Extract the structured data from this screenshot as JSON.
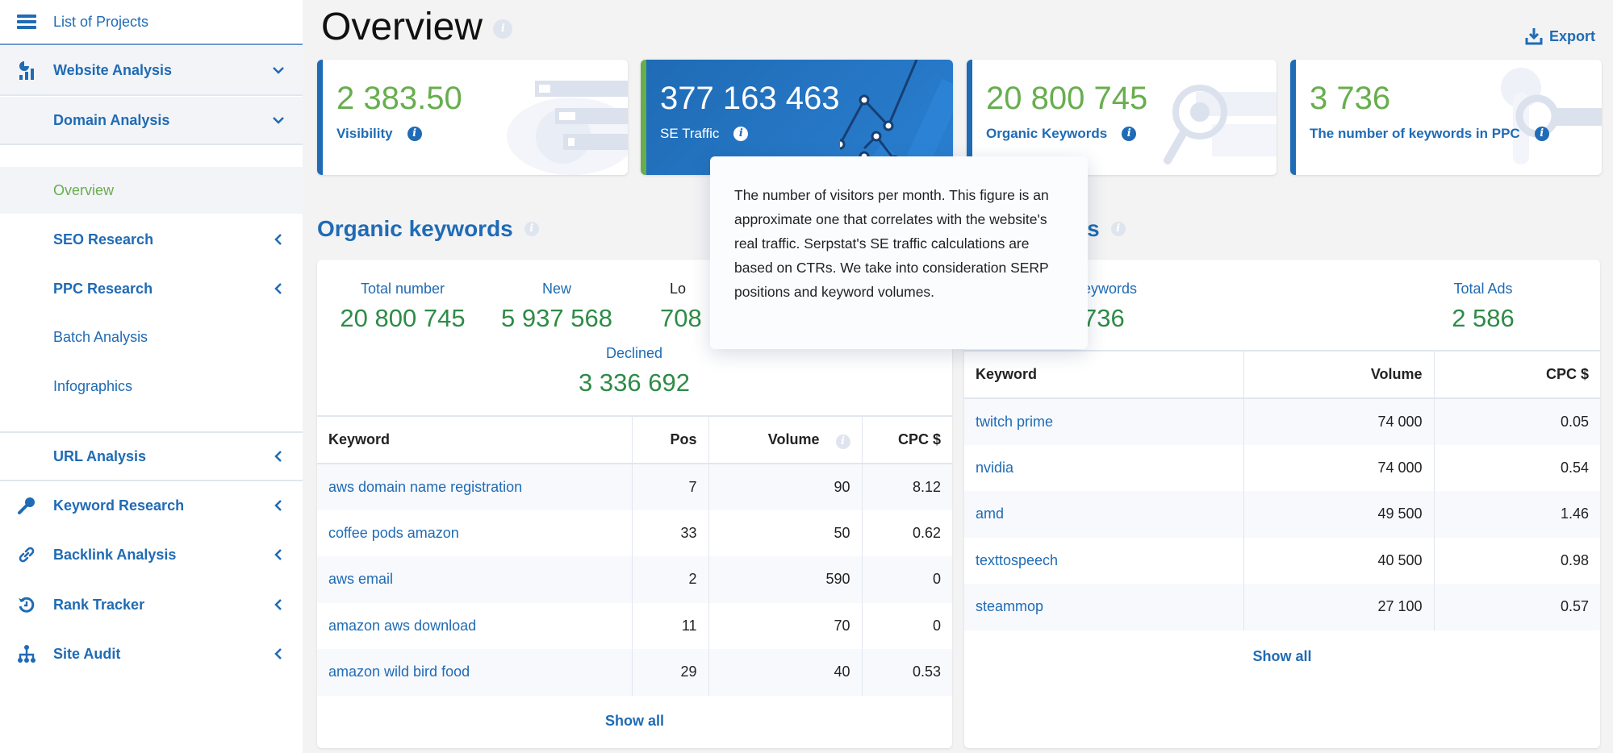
{
  "sidebar": {
    "list_projects": "List of Projects",
    "website_analysis": "Website Analysis",
    "domain_analysis": "Domain Analysis",
    "sub_items": [
      {
        "label": "Overview",
        "active": true
      },
      {
        "label": "SEO Research"
      },
      {
        "label": "PPC Research"
      },
      {
        "label": "Batch Analysis"
      },
      {
        "label": "Infographics"
      }
    ],
    "url_analysis": "URL Analysis",
    "tools": [
      {
        "label": "Keyword Research",
        "icon": "key-icon"
      },
      {
        "label": "Backlink Analysis",
        "icon": "link-icon"
      },
      {
        "label": "Rank Tracker",
        "icon": "history-icon"
      },
      {
        "label": "Site Audit",
        "icon": "sitemap-icon"
      }
    ]
  },
  "header": {
    "title": "Overview",
    "export": "Export"
  },
  "cards": [
    {
      "value": "2 383.50",
      "label": "Visibility"
    },
    {
      "value": "377 163 463",
      "label": "SE Traffic"
    },
    {
      "value": "20 800 745",
      "label": "Organic Keywords"
    },
    {
      "value": "3 736",
      "label": "The number of keywords in PPC"
    }
  ],
  "tooltip": "The number of visitors per month. This figure is an approximate one that correlates with the website's real traffic. Serpstat's SE traffic calculations are based on CTRs. We take into consideration SERP positions and keyword volumes.",
  "organic": {
    "title": "Organic keywords",
    "stats": [
      {
        "label": "Total number",
        "value": "20 800 745"
      },
      {
        "label": "New",
        "value": "5 937 568"
      },
      {
        "label": "Lo",
        "value": "708"
      },
      {
        "label": "Declined",
        "value": "3 336 692"
      }
    ],
    "columns": [
      "Keyword",
      "Pos",
      "Volume",
      "CPC $"
    ],
    "rows": [
      [
        "aws domain name registration",
        "7",
        "90",
        "8.12"
      ],
      [
        "coffee pods amazon",
        "33",
        "50",
        "0.62"
      ],
      [
        "aws email",
        "2",
        "590",
        "0"
      ],
      [
        "amazon aws download",
        "11",
        "70",
        "0"
      ],
      [
        "amazon wild bird food",
        "29",
        "40",
        "0.53"
      ]
    ],
    "show_all": "Show all"
  },
  "ppc": {
    "title": "ds",
    "stats": [
      {
        "label": "aid Keywords",
        "value": "3 736"
      },
      {
        "label": "Total Ads",
        "value": "2 586"
      }
    ],
    "columns": [
      "Keyword",
      "Volume",
      "CPC $"
    ],
    "rows": [
      [
        "twitch prime",
        "74 000",
        "0.05"
      ],
      [
        "nvidia",
        "74 000",
        "0.54"
      ],
      [
        "amd",
        "49 500",
        "1.46"
      ],
      [
        "texttospeech",
        "40 500",
        "0.98"
      ],
      [
        "steammop",
        "27 100",
        "0.57"
      ]
    ],
    "show_all": "Show all"
  },
  "colors": {
    "accent": "#1f6bb5",
    "green": "#67ae4e",
    "stat_green": "#2e8b47"
  }
}
